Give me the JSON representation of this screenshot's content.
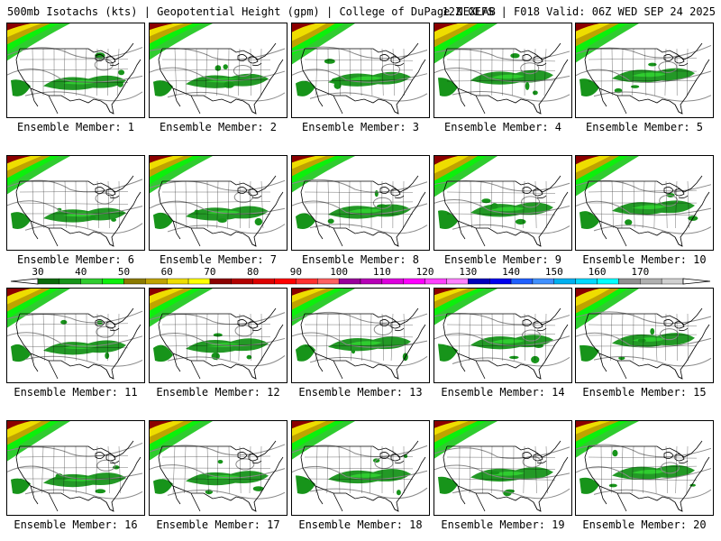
{
  "header": {
    "title": "500mb Isotachs (kts) | Geopotential Height (gpm) | College of DuPage NEXLAB",
    "run_info": "12Z GEFS | F018 Valid: 06Z WED SEP 24 2025"
  },
  "panels": [
    {
      "label": "Ensemble Member: 1"
    },
    {
      "label": "Ensemble Member: 2"
    },
    {
      "label": "Ensemble Member: 3"
    },
    {
      "label": "Ensemble Member: 4"
    },
    {
      "label": "Ensemble Member: 5"
    },
    {
      "label": "Ensemble Member: 6"
    },
    {
      "label": "Ensemble Member: 7"
    },
    {
      "label": "Ensemble Member: 8"
    },
    {
      "label": "Ensemble Member: 9"
    },
    {
      "label": "Ensemble Member: 10"
    },
    {
      "label": "Ensemble Member: 11"
    },
    {
      "label": "Ensemble Member: 12"
    },
    {
      "label": "Ensemble Member: 13"
    },
    {
      "label": "Ensemble Member: 14"
    },
    {
      "label": "Ensemble Member: 15"
    },
    {
      "label": "Ensemble Member: 16"
    },
    {
      "label": "Ensemble Member: 17"
    },
    {
      "label": "Ensemble Member: 18"
    },
    {
      "label": "Ensemble Member: 19"
    },
    {
      "label": "Ensemble Member: 20"
    }
  ],
  "colorbar": {
    "labels": [
      "30",
      "40",
      "50",
      "60",
      "70",
      "80",
      "90",
      "100",
      "110",
      "120",
      "130",
      "140",
      "150",
      "160",
      "170"
    ],
    "colors": [
      "#0a6b0a",
      "#17941a",
      "#2fcc2f",
      "#0cf00c",
      "#8b7a00",
      "#bfa300",
      "#eedd00",
      "#ffff00",
      "#8b0000",
      "#b20000",
      "#dd0000",
      "#ff0000",
      "#ff3030",
      "#ff6060",
      "#99009a",
      "#b700b7",
      "#dd00dd",
      "#ff00ff",
      "#ff40ff",
      "#ff80ff",
      "#0000bb",
      "#0000ee",
      "#2060ff",
      "#4090ff",
      "#00b0f0",
      "#00d8ff",
      "#00ffff",
      "#909090",
      "#b0b0b0",
      "#d0d0d0"
    ]
  },
  "map": {
    "wind_fill_colors": [
      "#17941a",
      "#2fcc2f",
      "#0cf00c",
      "#8b7a00",
      "#bfa300",
      "#eedd00",
      "#8b0000"
    ],
    "height_contour_color": "#8a8a8a",
    "border_color": "#000000"
  }
}
